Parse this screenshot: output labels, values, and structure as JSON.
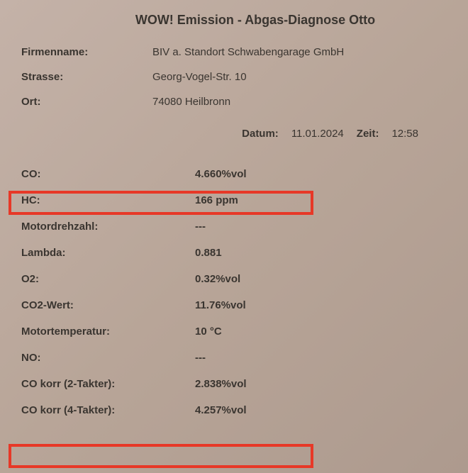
{
  "title": "WOW! Emission - Abgas-Diagnose Otto",
  "header": {
    "company_label": "Firmenname:",
    "company_value": "BIV a. Standort Schwabengarage GmbH",
    "street_label": "Strasse:",
    "street_value": "Georg-Vogel-Str. 10",
    "city_label": "Ort:",
    "city_value": "74080  Heilbronn",
    "date_label": "Datum:",
    "date_value": "11.01.2024",
    "time_label": "Zeit:",
    "time_value": "12:58"
  },
  "measurements": {
    "co_label": "CO:",
    "co_value": "4.660%vol",
    "hc_label": "HC:",
    "hc_value": "166 ppm",
    "rpm_label": "Motordrehzahl:",
    "rpm_value": "---",
    "lambda_label": "Lambda:",
    "lambda_value": "0.881",
    "o2_label": "O2:",
    "o2_value": "0.32%vol",
    "co2_label": "CO2-Wert:",
    "co2_value": "11.76%vol",
    "temp_label": "Motortemperatur:",
    "temp_value": "10 °C",
    "no_label": "NO:",
    "no_value": "---",
    "cokorr2_label": "CO korr (2-Takter):",
    "cokorr2_value": "2.838%vol",
    "cokorr4_label": "CO korr (4-Takter):",
    "cokorr4_value": "4.257%vol"
  },
  "style": {
    "highlight_color": "#e73827",
    "background_start": "#c4b2a8",
    "background_end": "#ad9a8e",
    "text_color": "#3a3530"
  }
}
